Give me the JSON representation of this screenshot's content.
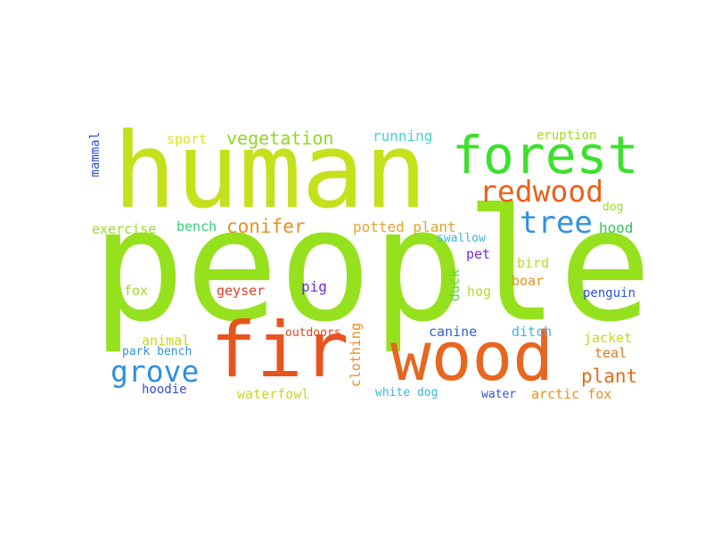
{
  "words": {
    "people": {
      "text": "people",
      "color": "#96e11e"
    },
    "human": {
      "text": "human",
      "color": "#c4e11b"
    },
    "forest": {
      "text": "forest",
      "color": "#3ce12b"
    },
    "fir": {
      "text": "fir",
      "color": "#e8541d"
    },
    "wood": {
      "text": "wood",
      "color": "#e8661f"
    },
    "redwood": {
      "text": "redwood",
      "color": "#e8611d"
    },
    "tree": {
      "text": "tree",
      "color": "#2f92e2"
    },
    "grove": {
      "text": "grove",
      "color": "#2e8fe0"
    },
    "vegetation": {
      "text": "vegetation",
      "color": "#8fd925"
    },
    "conifer": {
      "text": "conifer",
      "color": "#e8901e"
    },
    "plant": {
      "text": "plant",
      "color": "#e86a1d"
    },
    "running": {
      "text": "running",
      "color": "#3ed9cf"
    },
    "sport": {
      "text": "sport",
      "color": "#e0e01f"
    },
    "eruption": {
      "text": "eruption",
      "color": "#9ed925"
    },
    "mammal": {
      "text": "mammal",
      "color": "#2f4fd9"
    },
    "exercise": {
      "text": "exercise",
      "color": "#96e020"
    },
    "bench": {
      "text": "bench",
      "color": "#35cf77"
    },
    "potted_plant": {
      "text": "potted plant",
      "color": "#e8a030"
    },
    "dog": {
      "text": "dog",
      "color": "#9ed925"
    },
    "hood": {
      "text": "hood",
      "color": "#32c45e"
    },
    "swallow": {
      "text": "swallow",
      "color": "#35b8e0"
    },
    "pet": {
      "text": "pet",
      "color": "#6e2fe0"
    },
    "bird": {
      "text": "bird",
      "color": "#b8d925"
    },
    "boar": {
      "text": "boar",
      "color": "#e8901e"
    },
    "fox": {
      "text": "fox",
      "color": "#9ed925"
    },
    "geyser": {
      "text": "geyser",
      "color": "#e83c22"
    },
    "pig": {
      "text": "pig",
      "color": "#6a2fd9"
    },
    "duck": {
      "text": "duck",
      "color": "#5fd93a"
    },
    "hog": {
      "text": "hog",
      "color": "#b8d925"
    },
    "penguin": {
      "text": "penguin",
      "color": "#2f52d9"
    },
    "outdoors": {
      "text": "outdoors",
      "color": "#e8421d"
    },
    "clothing": {
      "text": "clothing",
      "color": "#e8901e"
    },
    "canine": {
      "text": "canine",
      "color": "#2f5fd9"
    },
    "ditch": {
      "text": "ditch",
      "color": "#35b8e0"
    },
    "jacket": {
      "text": "jacket",
      "color": "#c4d925"
    },
    "animal": {
      "text": "animal",
      "color": "#c4d925"
    },
    "park_bench": {
      "text": "park bench",
      "color": "#2f8fe0"
    },
    "teal": {
      "text": "teal",
      "color": "#e8761d"
    },
    "hoodie": {
      "text": "hoodie",
      "color": "#2f4fd9"
    },
    "waterfowl": {
      "text": "waterfowl",
      "color": "#c4d925"
    },
    "white_dog": {
      "text": "white dog",
      "color": "#35b8e0"
    },
    "water": {
      "text": "water",
      "color": "#2f52d9"
    },
    "arctic_fox": {
      "text": "arctic fox",
      "color": "#e8901e"
    }
  }
}
